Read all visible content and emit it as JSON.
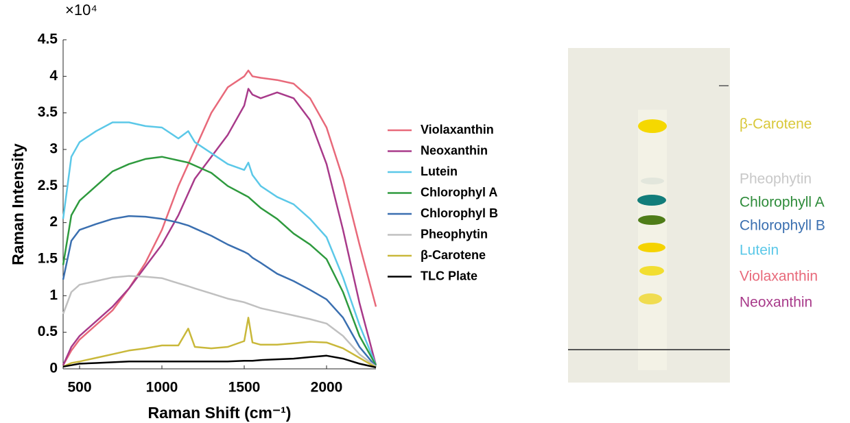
{
  "chart_data": {
    "type": "line",
    "y_multiplier": "×10⁴",
    "xlabel": "Raman Shift (cm⁻¹)",
    "ylabel": "Raman Intensity",
    "x": [
      400,
      450,
      500,
      600,
      700,
      800,
      900,
      1000,
      1100,
      1160,
      1200,
      1300,
      1400,
      1500,
      1525,
      1550,
      1600,
      1700,
      1800,
      1900,
      2000,
      2100,
      2200,
      2300
    ],
    "xlim": [
      400,
      2300
    ],
    "xticks": [
      500,
      1000,
      1500,
      2000
    ],
    "ylim": [
      0,
      4.5
    ],
    "yticks": [
      0,
      0.5,
      1,
      1.5,
      2,
      2.5,
      3,
      3.5,
      4,
      4.5
    ],
    "series": [
      {
        "name": "Violaxanthin",
        "color": "#e8697a",
        "values": [
          0.05,
          0.25,
          0.4,
          0.6,
          0.8,
          1.1,
          1.45,
          1.9,
          2.5,
          2.8,
          3.0,
          3.5,
          3.85,
          4.0,
          4.08,
          4.0,
          3.98,
          3.95,
          3.9,
          3.7,
          3.3,
          2.6,
          1.7,
          0.85
        ]
      },
      {
        "name": "Neoxanthin",
        "color": "#a83a8a",
        "values": [
          0.05,
          0.3,
          0.45,
          0.65,
          0.85,
          1.1,
          1.4,
          1.7,
          2.1,
          2.4,
          2.6,
          2.9,
          3.2,
          3.6,
          3.83,
          3.75,
          3.7,
          3.78,
          3.7,
          3.4,
          2.8,
          1.9,
          0.9,
          0.05
        ]
      },
      {
        "name": "Lutein",
        "color": "#5bc8e8",
        "values": [
          2.05,
          2.9,
          3.1,
          3.25,
          3.37,
          3.37,
          3.32,
          3.3,
          3.15,
          3.25,
          3.1,
          2.95,
          2.8,
          2.72,
          2.82,
          2.65,
          2.5,
          2.35,
          2.25,
          2.05,
          1.8,
          1.25,
          0.6,
          0.05
        ]
      },
      {
        "name": "Chlorophyl A",
        "color": "#2e9a3e",
        "values": [
          1.42,
          2.1,
          2.3,
          2.5,
          2.7,
          2.8,
          2.87,
          2.9,
          2.85,
          2.82,
          2.78,
          2.68,
          2.5,
          2.38,
          2.35,
          2.3,
          2.2,
          2.05,
          1.85,
          1.7,
          1.5,
          1.05,
          0.45,
          0.05
        ]
      },
      {
        "name": "Chlorophyl B",
        "color": "#3a6fb0",
        "values": [
          1.22,
          1.75,
          1.9,
          1.98,
          2.05,
          2.09,
          2.08,
          2.05,
          2.0,
          1.96,
          1.92,
          1.82,
          1.7,
          1.6,
          1.57,
          1.52,
          1.45,
          1.3,
          1.2,
          1.08,
          0.95,
          0.7,
          0.3,
          0.03
        ]
      },
      {
        "name": "Pheophytin",
        "color": "#c0c0c0",
        "values": [
          0.75,
          1.05,
          1.15,
          1.2,
          1.25,
          1.27,
          1.26,
          1.24,
          1.17,
          1.13,
          1.1,
          1.03,
          0.96,
          0.91,
          0.89,
          0.87,
          0.83,
          0.78,
          0.73,
          0.68,
          0.62,
          0.45,
          0.2,
          0.03
        ]
      },
      {
        "name": "β-Carotene",
        "color": "#c9b83a",
        "values": [
          0.03,
          0.08,
          0.1,
          0.15,
          0.2,
          0.25,
          0.28,
          0.32,
          0.32,
          0.55,
          0.3,
          0.28,
          0.3,
          0.38,
          0.7,
          0.36,
          0.33,
          0.33,
          0.35,
          0.37,
          0.36,
          0.28,
          0.15,
          0.02
        ]
      },
      {
        "name": "TLC Plate",
        "color": "#000000",
        "values": [
          0.03,
          0.05,
          0.07,
          0.08,
          0.09,
          0.1,
          0.1,
          0.1,
          0.1,
          0.1,
          0.1,
          0.1,
          0.1,
          0.11,
          0.11,
          0.11,
          0.12,
          0.13,
          0.14,
          0.16,
          0.18,
          0.14,
          0.07,
          0.02
        ]
      }
    ]
  },
  "tlc_plate": {
    "labels": [
      {
        "text": "β-Carotene",
        "color": "#d9c83a"
      },
      {
        "text": "Pheophytin",
        "color": "#c8c8c8"
      },
      {
        "text": "Chlorophyll A",
        "color": "#2e8b3a"
      },
      {
        "text": "Chlorophyll B",
        "color": "#3a6fb0"
      },
      {
        "text": "Lutein",
        "color": "#5bc8e8"
      },
      {
        "text": "Violaxanthin",
        "color": "#e8697a"
      },
      {
        "text": "Neoxanthin",
        "color": "#a83a8a"
      }
    ]
  }
}
